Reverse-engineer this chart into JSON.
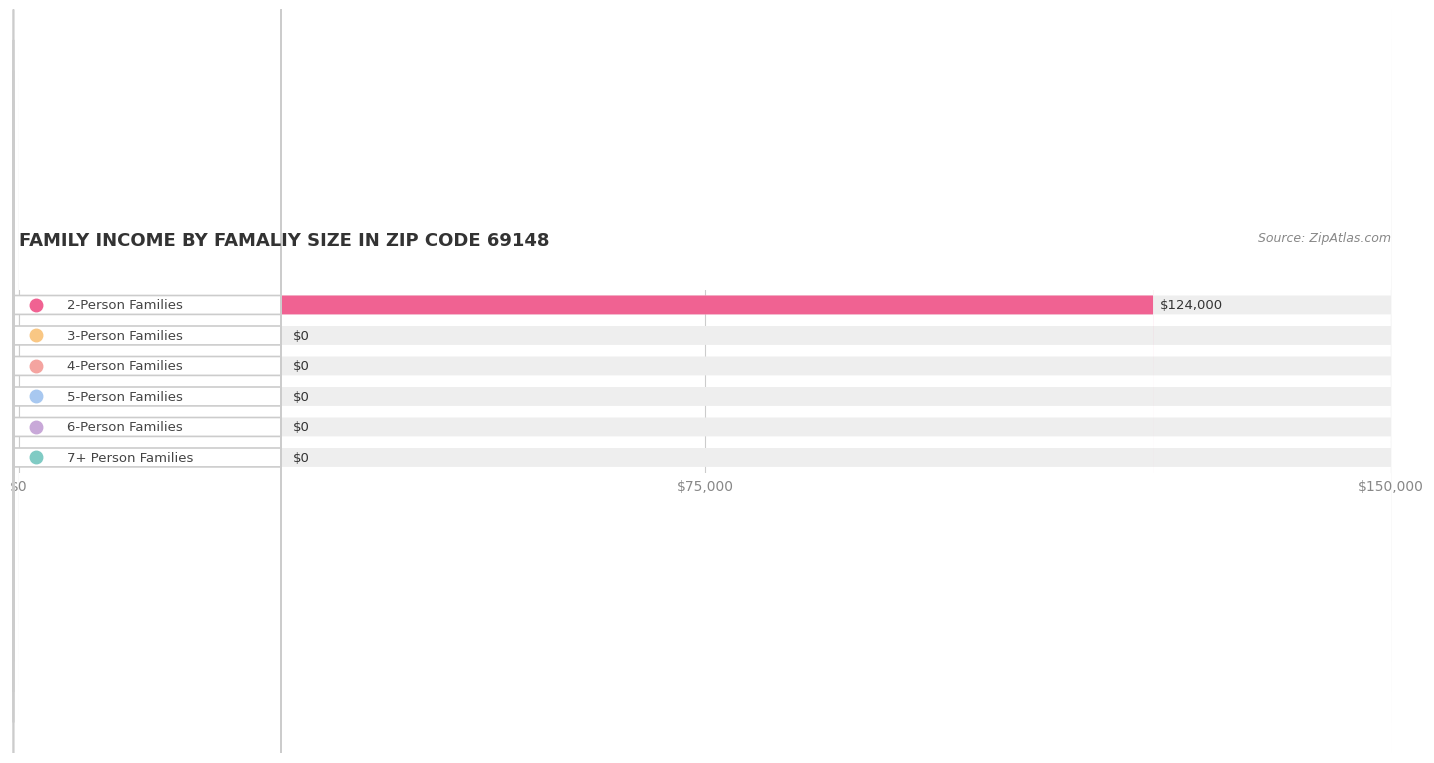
{
  "title": "FAMILY INCOME BY FAMALIY SIZE IN ZIP CODE 69148",
  "source": "Source: ZipAtlas.com",
  "categories": [
    "2-Person Families",
    "3-Person Families",
    "4-Person Families",
    "5-Person Families",
    "6-Person Families",
    "7+ Person Families"
  ],
  "values": [
    124000,
    0,
    0,
    0,
    0,
    0
  ],
  "bar_colors": [
    "#f06292",
    "#f9c784",
    "#f4a4a0",
    "#a8c8f0",
    "#c8a8d8",
    "#80cbc4"
  ],
  "label_colors": [
    "#f06292",
    "#f9c784",
    "#f4a4a0",
    "#a8c8f0",
    "#c8a8d8",
    "#80cbc4"
  ],
  "xlim": [
    0,
    150000
  ],
  "xticks": [
    0,
    75000,
    150000
  ],
  "xtick_labels": [
    "$0",
    "$75,000",
    "$150,000"
  ],
  "value_labels": [
    "$124,000",
    "$0",
    "$0",
    "$0",
    "$0",
    "$0"
  ],
  "background_color": "#ffffff",
  "bar_bg_color": "#eeeeee",
  "title_fontsize": 13,
  "source_fontsize": 9,
  "tick_fontsize": 10,
  "label_fontsize": 9.5
}
